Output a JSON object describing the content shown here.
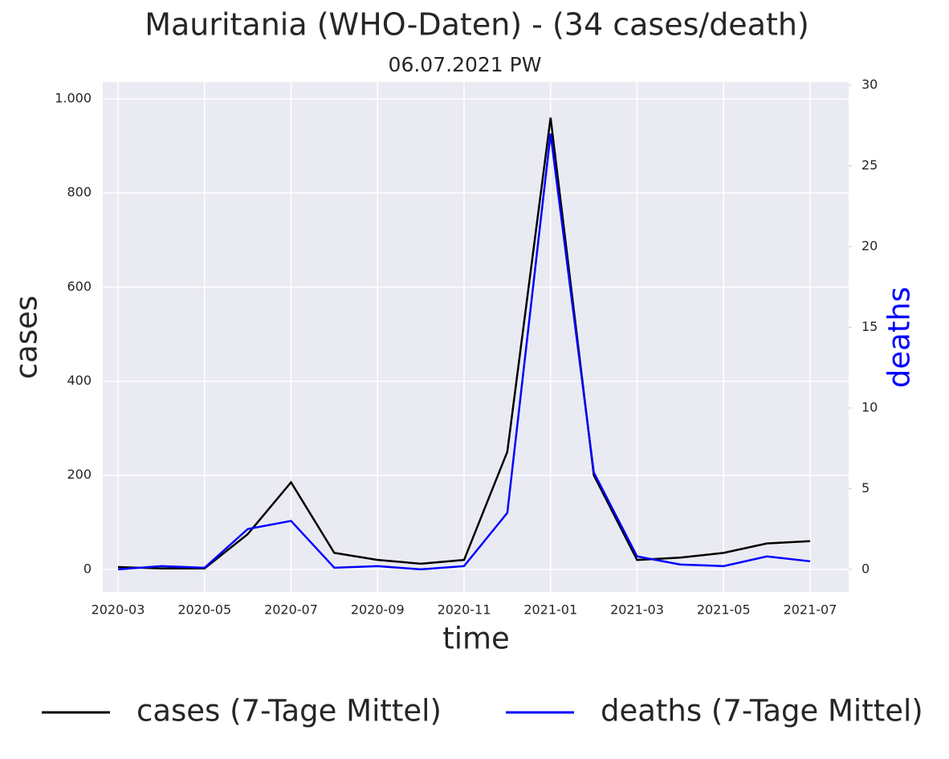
{
  "chart_data": {
    "type": "line",
    "title": "Mauritania (WHO-Daten) - (34 cases/death)",
    "subtitle": "06.07.2021 PW",
    "x_label": "time",
    "y_label": "cases",
    "y2_label": "deaths",
    "x": [
      "2020-03",
      "2020-04",
      "2020-05",
      "2020-06",
      "2020-07",
      "2020-08",
      "2020-09",
      "2020-10",
      "2020-11",
      "2020-12",
      "2021-01",
      "2021-02",
      "2021-03",
      "2021-04",
      "2021-05",
      "2021-06",
      "2021-07"
    ],
    "series": [
      {
        "name": "cases (7-Tage Mittel)",
        "color": "#000000",
        "axis": "y",
        "values": [
          5,
          2,
          2,
          75,
          185,
          35,
          20,
          12,
          20,
          250,
          960,
          200,
          20,
          25,
          35,
          55,
          60
        ]
      },
      {
        "name": "deaths (7-Tage Mittel)",
        "color": "#0000ff",
        "axis": "y2",
        "values": [
          0,
          0.2,
          0.1,
          2.5,
          3,
          0.1,
          0.2,
          0,
          0.2,
          3.5,
          27,
          6,
          0.8,
          0.3,
          0.2,
          0.8,
          0.5
        ]
      }
    ],
    "xticks": [
      "2020-03",
      "2020-05",
      "2020-07",
      "2020-09",
      "2020-11",
      "2021-01",
      "2021-03",
      "2021-05",
      "2021-07"
    ],
    "ylim": [
      -48,
      1036
    ],
    "yticks": [
      0,
      200,
      400,
      600,
      800,
      {
        "value": 1000,
        "label": "1.000"
      }
    ],
    "y2lim": [
      -1.4,
      30.2
    ],
    "y2ticks": [
      0,
      5,
      10,
      15,
      20,
      25,
      30
    ],
    "y2_color": "#0000ff",
    "grid": true,
    "legend": "bottom"
  }
}
